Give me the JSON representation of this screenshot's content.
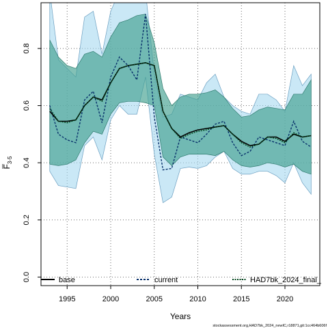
{
  "chart_data": {
    "type": "line",
    "xlabel": "Years",
    "ylabel_main": "F",
    "ylabel_sub": "3-5",
    "xlim": [
      1992,
      2024
    ],
    "ylim": [
      -0.03,
      0.96
    ],
    "xticks": [
      1995,
      2000,
      2005,
      2010,
      2015,
      2020
    ],
    "yticks": [
      0.0,
      0.2,
      0.4,
      0.6,
      0.8
    ],
    "ytick_labels": [
      "0.0",
      "0.2",
      "0.4",
      "0.6",
      "0.8"
    ],
    "grid": true,
    "legend_position": "bottom",
    "footnote": "stockassessment.org,HAD7bk_2024_newIC,r18871,git:1cc464b606f",
    "x": [
      1993,
      1994,
      1995,
      1996,
      1997,
      1998,
      1999,
      2000,
      2001,
      2002,
      2003,
      2004,
      2005,
      2006,
      2007,
      2008,
      2009,
      2010,
      2011,
      2012,
      2013,
      2014,
      2015,
      2016,
      2017,
      2018,
      2019,
      2020,
      2021,
      2022,
      2023
    ],
    "series": [
      {
        "name": "base",
        "color": "#000000",
        "dash": "solid",
        "values": [
          0.58,
          0.545,
          0.545,
          0.55,
          0.6,
          0.63,
          0.62,
          0.68,
          0.73,
          0.74,
          0.745,
          0.75,
          0.74,
          0.58,
          0.52,
          0.49,
          0.505,
          0.515,
          0.52,
          0.525,
          0.53,
          0.5,
          0.475,
          0.46,
          0.465,
          0.49,
          0.49,
          0.475,
          0.5,
          0.49,
          0.495
        ]
      },
      {
        "name": "current",
        "color": "#08306b",
        "dash": "short",
        "values": [
          0.6,
          0.5,
          0.48,
          0.47,
          0.62,
          0.65,
          0.54,
          0.7,
          0.77,
          0.74,
          0.69,
          0.92,
          0.56,
          0.375,
          0.38,
          0.49,
          0.48,
          0.47,
          0.5,
          0.535,
          0.545,
          0.47,
          0.425,
          0.44,
          0.49,
          0.48,
          0.47,
          0.46,
          0.545,
          0.475,
          0.455
        ]
      },
      {
        "name": "HAD7bk_2024_final_",
        "color": "#00441b",
        "dash": "dense",
        "values": [
          0.59,
          0.545,
          0.54,
          0.55,
          0.6,
          0.63,
          0.615,
          0.68,
          0.73,
          0.74,
          0.745,
          0.75,
          0.74,
          0.58,
          0.52,
          0.485,
          0.5,
          0.51,
          0.515,
          0.525,
          0.53,
          0.5,
          0.47,
          0.455,
          0.465,
          0.49,
          0.485,
          0.47,
          0.505,
          0.49,
          0.495
        ]
      }
    ],
    "bands": [
      {
        "name": "current",
        "fill": "#a6d8f0",
        "opacity": 0.6,
        "stroke": "#6a9ec0",
        "upper": [
          1.0,
          0.76,
          0.73,
          0.7,
          0.91,
          0.93,
          0.78,
          0.93,
          1.0,
          1.0,
          1.0,
          1.0,
          0.71,
          0.56,
          0.57,
          0.64,
          0.63,
          0.62,
          0.68,
          0.71,
          0.63,
          0.6,
          0.58,
          0.57,
          0.64,
          0.64,
          0.62,
          0.58,
          0.74,
          0.67,
          0.71
        ],
        "lower": [
          0.37,
          0.32,
          0.315,
          0.31,
          0.46,
          0.49,
          0.41,
          0.55,
          0.6,
          0.57,
          0.57,
          0.7,
          0.43,
          0.26,
          0.28,
          0.38,
          0.385,
          0.38,
          0.39,
          0.42,
          0.44,
          0.38,
          0.36,
          0.36,
          0.37,
          0.37,
          0.355,
          0.33,
          0.4,
          0.33,
          0.29
        ]
      },
      {
        "name": "base",
        "fill": "#41a08f",
        "opacity": 0.65,
        "stroke": "#2e7a6d",
        "upper": [
          0.83,
          0.77,
          0.74,
          0.73,
          0.78,
          0.79,
          0.77,
          0.84,
          0.89,
          0.9,
          0.915,
          0.92,
          0.82,
          0.66,
          0.6,
          0.63,
          0.64,
          0.64,
          0.645,
          0.655,
          0.63,
          0.59,
          0.56,
          0.565,
          0.585,
          0.595,
          0.59,
          0.585,
          0.64,
          0.64,
          0.69
        ],
        "lower": [
          0.395,
          0.39,
          0.395,
          0.41,
          0.47,
          0.51,
          0.5,
          0.57,
          0.61,
          0.615,
          0.615,
          0.61,
          0.6,
          0.42,
          0.39,
          0.42,
          0.43,
          0.43,
          0.43,
          0.425,
          0.44,
          0.41,
          0.39,
          0.385,
          0.39,
          0.4,
          0.395,
          0.385,
          0.395,
          0.37,
          0.36
        ]
      }
    ]
  }
}
